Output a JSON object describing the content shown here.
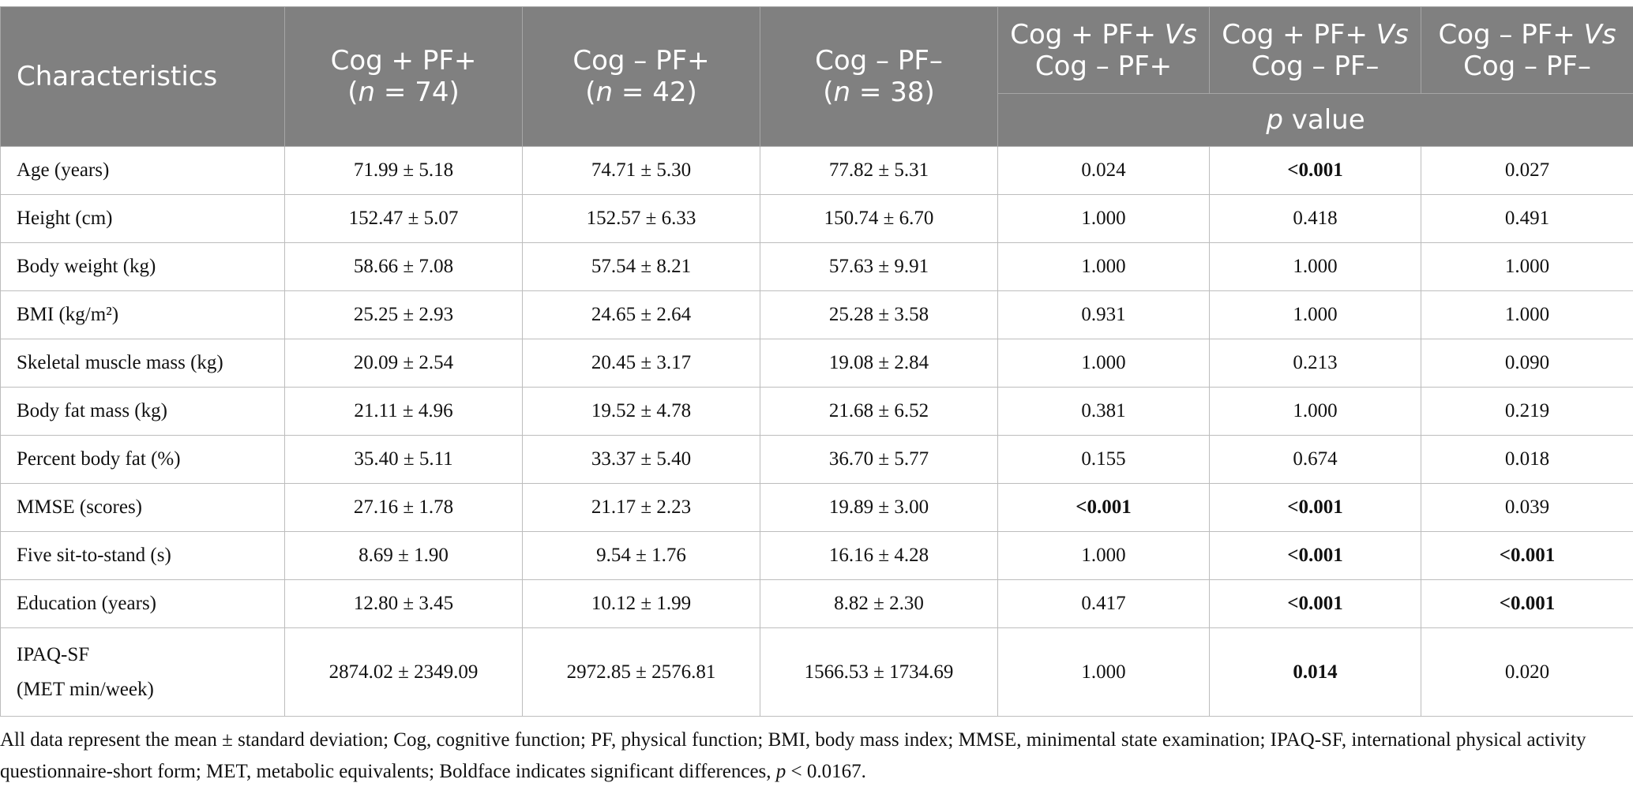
{
  "table": {
    "header": {
      "characteristics": "Characteristics",
      "groups": [
        {
          "name": "Cog + PF+",
          "n_label": "n",
          "n_eq": " = 74"
        },
        {
          "name": "Cog – PF+",
          "n_label": "n",
          "n_eq": " = 42"
        },
        {
          "name": "Cog – PF–",
          "n_label": "n",
          "n_eq": " = 38"
        }
      ],
      "comparisons": [
        {
          "a": "Cog + PF+",
          "vs": "Vs",
          "b": "Cog – PF+"
        },
        {
          "a": "Cog + PF+",
          "vs": "Vs",
          "b": "Cog – PF–"
        },
        {
          "a": "Cog – PF+",
          "vs": "Vs",
          "b": "Cog – PF–"
        }
      ],
      "p_value_italic": "p",
      "p_value_rest": " value"
    },
    "rows": [
      {
        "label": "Age (years)",
        "g1": "71.99 ± 5.18",
        "g2": "74.71 ± 5.30",
        "g3": "77.82 ± 5.31",
        "p1": "0.024",
        "p2": "<0.001",
        "p3": "0.027"
      },
      {
        "label": "Height (cm)",
        "g1": "152.47 ± 5.07",
        "g2": "152.57 ± 6.33",
        "g3": "150.74 ± 6.70",
        "p1": "1.000",
        "p2": "0.418",
        "p3": "0.491"
      },
      {
        "label": "Body weight (kg)",
        "g1": "58.66 ± 7.08",
        "g2": "57.54 ± 8.21",
        "g3": "57.63 ± 9.91",
        "p1": "1.000",
        "p2": "1.000",
        "p3": "1.000"
      },
      {
        "label": "BMI (kg/m²)",
        "g1": "25.25 ± 2.93",
        "g2": "24.65 ± 2.64",
        "g3": "25.28 ± 3.58",
        "p1": "0.931",
        "p2": "1.000",
        "p3": "1.000"
      },
      {
        "label": "Skeletal muscle mass (kg)",
        "g1": "20.09 ± 2.54",
        "g2": "20.45 ± 3.17",
        "g3": "19.08 ± 2.84",
        "p1": "1.000",
        "p2": "0.213",
        "p3": "0.090"
      },
      {
        "label": "Body fat mass (kg)",
        "g1": "21.11 ± 4.96",
        "g2": "19.52 ± 4.78",
        "g3": "21.68 ± 6.52",
        "p1": "0.381",
        "p2": "1.000",
        "p3": "0.219"
      },
      {
        "label": "Percent body fat (%)",
        "g1": "35.40 ± 5.11",
        "g2": "33.37 ± 5.40",
        "g3": "36.70 ± 5.77",
        "p1": "0.155",
        "p2": "0.674",
        "p3": "0.018"
      },
      {
        "label": "MMSE (scores)",
        "g1": "27.16 ± 1.78",
        "g2": "21.17 ± 2.23",
        "g3": "19.89 ± 3.00",
        "p1": "<0.001",
        "p2": "<0.001",
        "p3": "0.039"
      },
      {
        "label": "Five sit-to-stand (s)",
        "g1": "8.69 ± 1.90",
        "g2": "9.54 ± 1.76",
        "g3": "16.16 ± 4.28",
        "p1": "1.000",
        "p2": "<0.001",
        "p3": "<0.001"
      },
      {
        "label": "Education (years)",
        "g1": "12.80 ± 3.45",
        "g2": "10.12 ± 1.99",
        "g3": "8.82 ± 2.30",
        "p1": "0.417",
        "p2": "<0.001",
        "p3": "<0.001"
      },
      {
        "label_line1": "IPAQ-SF",
        "label_line2": "(MET min/week)",
        "g1": "2874.02 ± 2349.09",
        "g2": "2972.85 ± 2576.81",
        "g3": "1566.53 ± 1734.69",
        "p1": "1.000",
        "p2": "0.014",
        "p3": "0.020"
      }
    ]
  },
  "footnote": {
    "main": "All data represent the mean ± standard deviation; Cog, cognitive function; PF, physical function; BMI, body mass index; MMSE, minimental state examination; IPAQ-SF, international physical activity questionnaire-short form; MET, metabolic equivalents; Boldface indicates significant differences, ",
    "p_italic": "p",
    "threshold": " < 0.0167."
  },
  "colors": {
    "header_bg": "#808080",
    "header_text": "#ffffff",
    "border": "#bdbdbd"
  }
}
